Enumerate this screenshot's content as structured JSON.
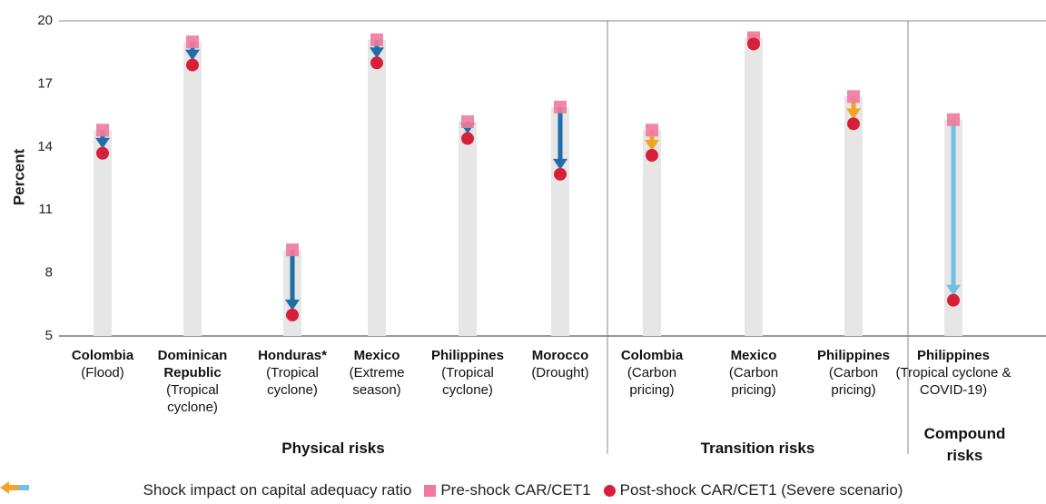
{
  "chart_data": {
    "type": "dumbbell-arrow",
    "y_label": "Percent",
    "categories": [
      "Colombia",
      "Dominican Republic",
      "Honduras*",
      "Mexico",
      "Philippines",
      "Morocco",
      "Colombia",
      "Mexico",
      "Philippines",
      "Philippines"
    ],
    "scenarios": [
      "(Flood)",
      "(Tropical cyclone)",
      "(Tropical cyclone)",
      "(Extreme season)",
      "(Tropical cyclone)",
      "(Drought)",
      "(Carbon pricing)",
      "(Carbon pricing)",
      "(Carbon pricing)",
      "(Tropical cyclone & COVID-19)"
    ],
    "groups": [
      {
        "name": "Physical risks",
        "color": "#1f6ea8"
      },
      {
        "name": "Transition risks",
        "color": "#f4a324"
      },
      {
        "name": "Compound risks",
        "color": "#72bfe3"
      }
    ],
    "category_groups": [
      0,
      0,
      0,
      0,
      0,
      0,
      1,
      1,
      1,
      2
    ],
    "arrow_legend": "Shock impact on capital adequacy ratio",
    "series": [
      {
        "name": "Pre-shock CAR/CET1",
        "color": "#ef7a9c",
        "values": [
          14.8,
          19.0,
          9.1,
          19.1,
          15.2,
          15.9,
          14.8,
          19.2,
          16.4,
          15.3
        ]
      },
      {
        "name": "Post-shock CAR/CET1 (Severe scenario)",
        "color": "#d6203a",
        "values": [
          13.7,
          17.9,
          6.0,
          18.0,
          14.4,
          12.7,
          13.6,
          18.9,
          15.1,
          6.7
        ]
      }
    ],
    "ylim": [
      5,
      20
    ],
    "yticks": [
      5,
      8,
      11,
      14,
      17,
      20
    ]
  }
}
